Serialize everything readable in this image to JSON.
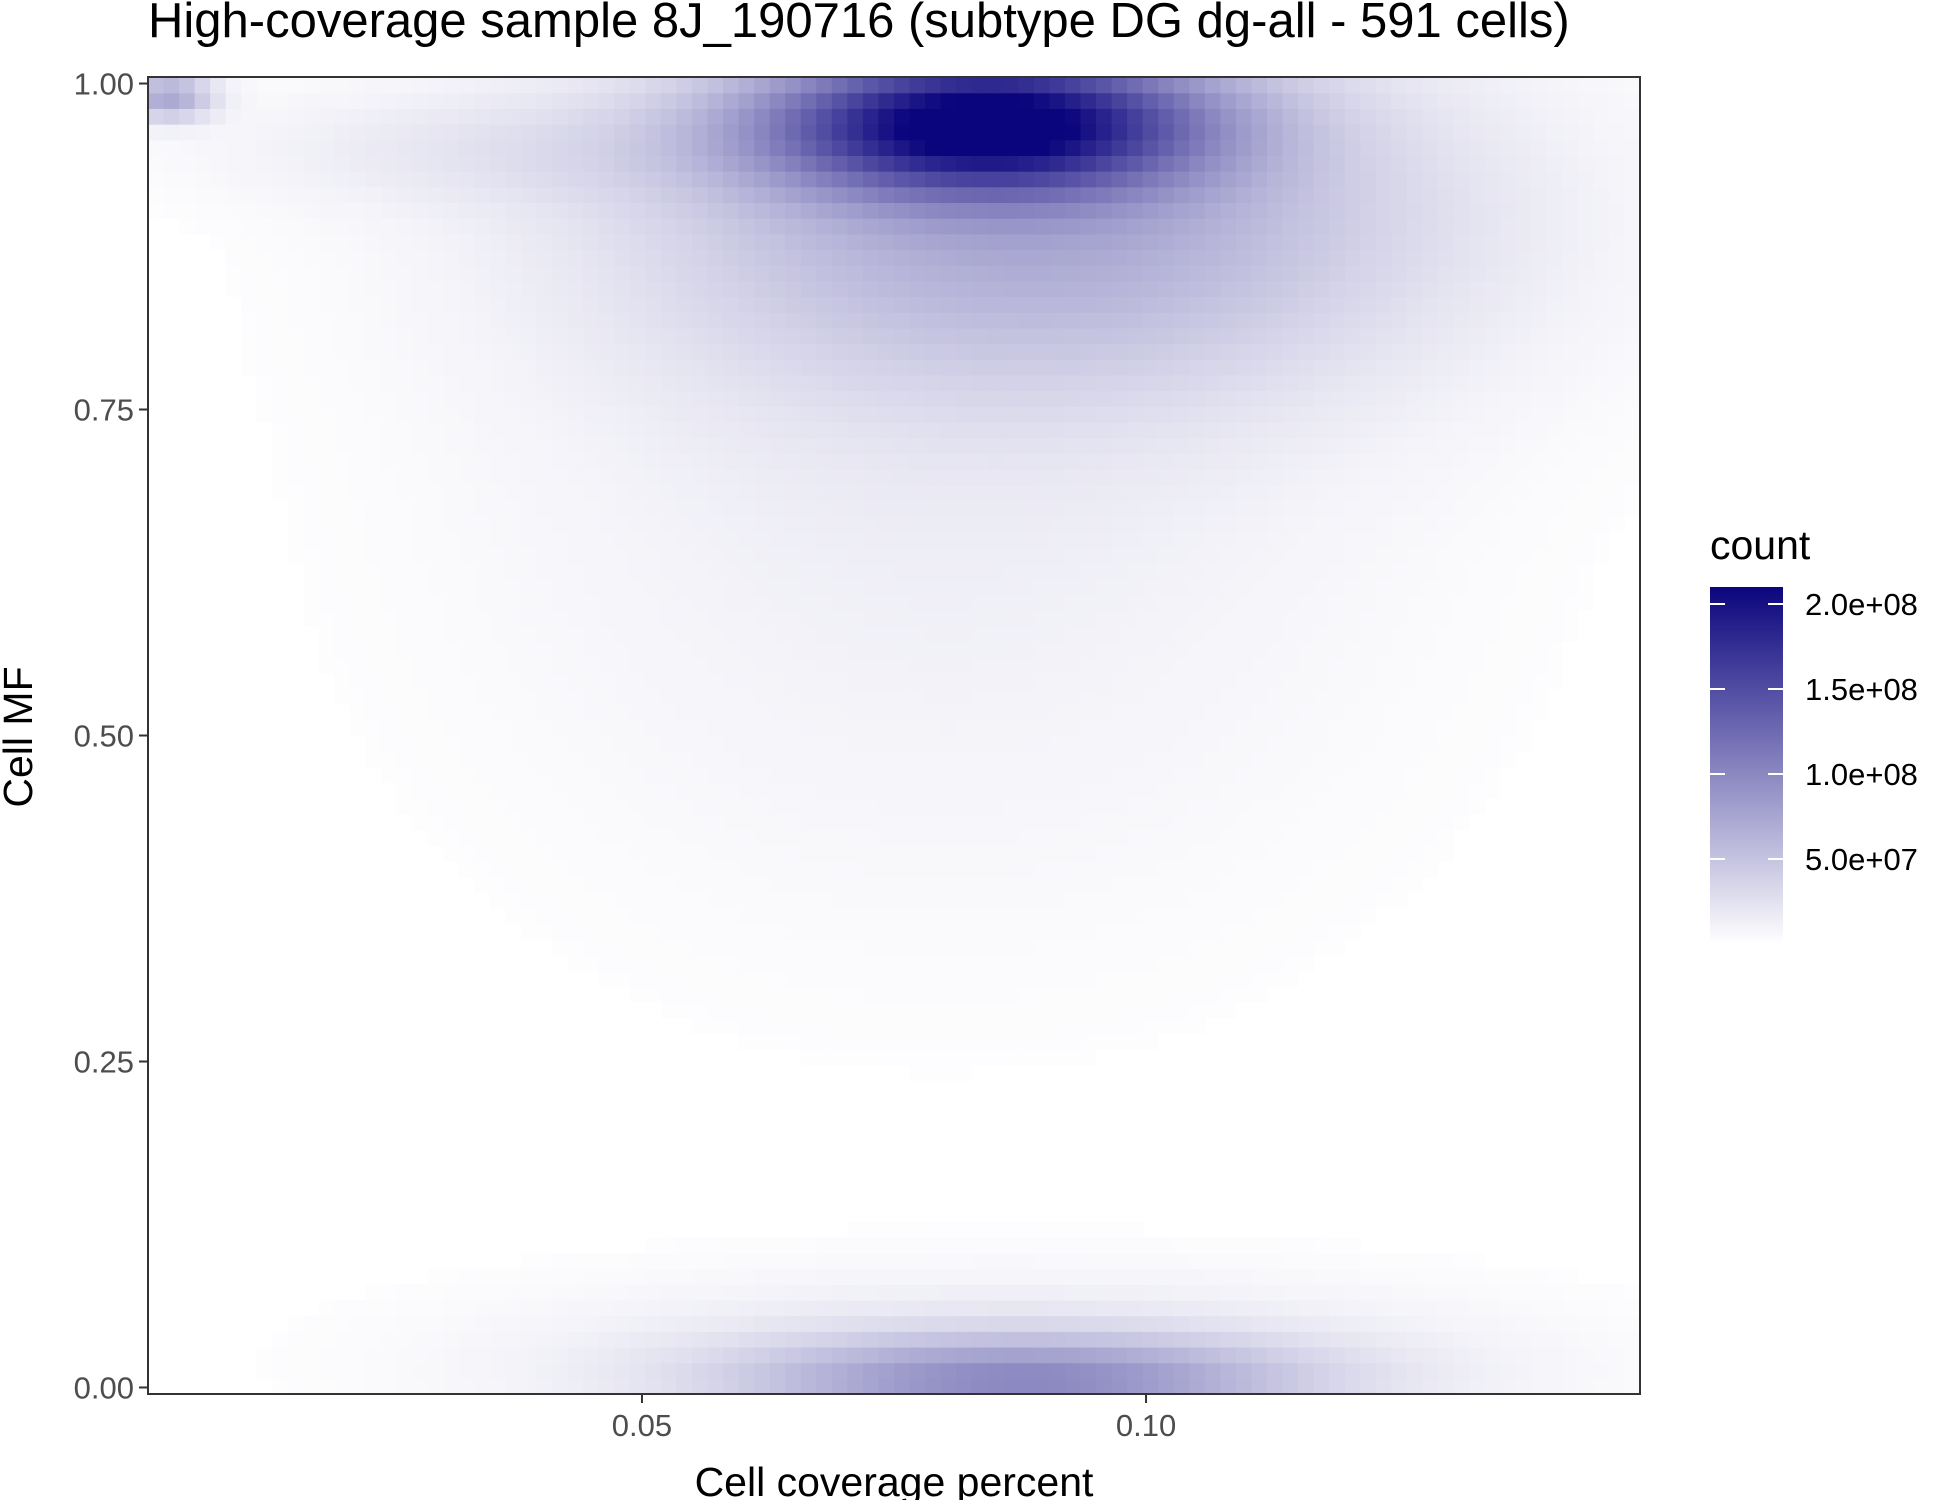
{
  "chart_data": {
    "type": "heatmap",
    "title": "High-coverage sample 8J_190716 (subtype DG dg-all - 591 cells)",
    "xlabel": "Cell coverage percent",
    "ylabel": "Cell MF",
    "xlim": [
      0.001,
      0.149
    ],
    "ylim": [
      -0.005,
      1.005
    ],
    "x_ticks": [
      {
        "value": 0.05,
        "label": "0.05"
      },
      {
        "value": 0.1,
        "label": "0.10"
      }
    ],
    "y_ticks": [
      {
        "value": 0.0,
        "label": "0.00"
      },
      {
        "value": 0.25,
        "label": "0.25"
      },
      {
        "value": 0.5,
        "label": "0.50"
      },
      {
        "value": 0.75,
        "label": "0.75"
      },
      {
        "value": 1.0,
        "label": "1.00"
      }
    ],
    "grid": false,
    "legend": {
      "title": "count",
      "position": "right",
      "min": 0,
      "max": 210000000,
      "low_color": "#ffffff",
      "high_color": "#0b057d",
      "breaks": [
        {
          "value": 50000000,
          "label": "5.0e+07"
        },
        {
          "value": 100000000,
          "label": "1.0e+08"
        },
        {
          "value": 150000000,
          "label": "1.5e+08"
        },
        {
          "value": 200000000,
          "label": "2.0e+08"
        }
      ]
    },
    "density_components": [
      {
        "x": 0.084,
        "y": 0.97,
        "sx": 0.014,
        "sy": 0.035,
        "count": 200000000
      },
      {
        "x": 0.09,
        "y": 0.9,
        "sx": 0.026,
        "sy": 0.09,
        "count": 55000000
      },
      {
        "x": 0.08,
        "y": 0.72,
        "sx": 0.03,
        "sy": 0.22,
        "count": 9000000
      },
      {
        "x": 0.088,
        "y": 0.005,
        "sx": 0.018,
        "sy": 0.022,
        "count": 72000000
      },
      {
        "x": 0.086,
        "y": 0.02,
        "sx": 0.03,
        "sy": 0.04,
        "count": 18000000
      },
      {
        "x": 0.003,
        "y": 0.99,
        "sx": 0.003,
        "sy": 0.012,
        "count": 60000000
      },
      {
        "x": 0.04,
        "y": 0.95,
        "sx": 0.02,
        "sy": 0.03,
        "count": 12000000
      }
    ],
    "colors": {
      "panel_border": "#333333",
      "tick": "#333333",
      "tick_label": "#4d4d4d"
    }
  }
}
